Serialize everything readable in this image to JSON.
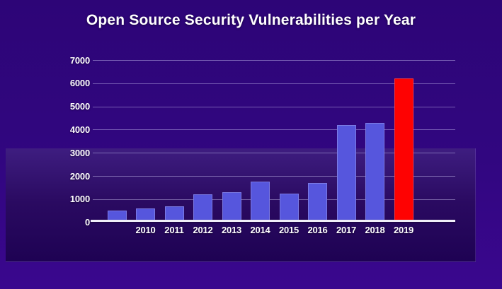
{
  "theme": {
    "background_top": "#2d0577",
    "background_bottom": "#3a078e",
    "band_top": "#3e1d80",
    "band_bottom": "#1e0253",
    "grid_color": "rgba(219,214,255,0.42)",
    "axis_line_color": "#f0eef8",
    "text_color": "#ffffff"
  },
  "chart_data": {
    "type": "bar",
    "title": "Open Source Security Vulnerabilities per Year",
    "categories": [
      "",
      "2010",
      "2011",
      "2012",
      "2013",
      "2014",
      "2015",
      "2016",
      "2017",
      "2018",
      "2019"
    ],
    "values": [
      500,
      600,
      700,
      1200,
      1300,
      1750,
      1250,
      1700,
      4200,
      4300,
      6200
    ],
    "bar_color": "#5656dd",
    "highlight_index": 10,
    "highlight_color": "#fe0202",
    "y_ticks": [
      0,
      1000,
      2000,
      3000,
      4000,
      5000,
      6000,
      7000
    ],
    "ylim": [
      0,
      7000
    ],
    "xlabel": "",
    "ylabel": "",
    "grid": true,
    "legend": false
  }
}
